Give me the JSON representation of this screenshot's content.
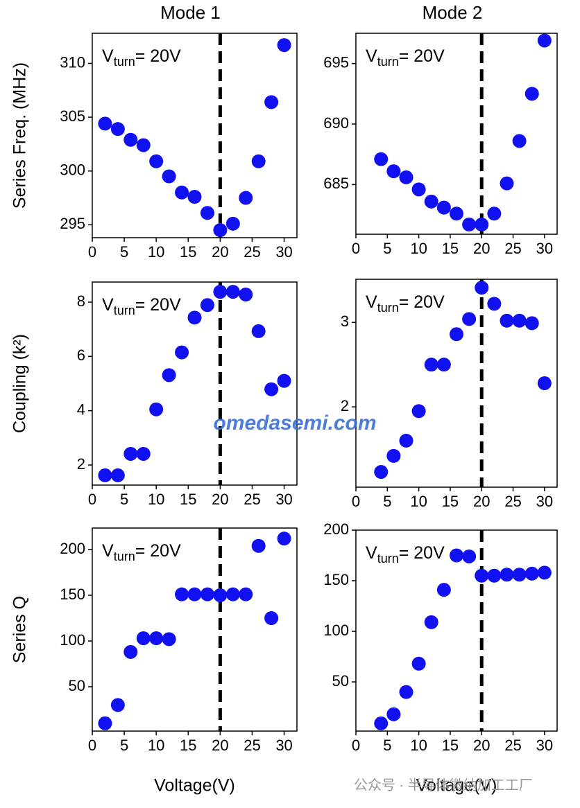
{
  "chart_data": [
    {
      "type": "scatter",
      "title": "Mode 1",
      "ylabel": "Series Freq. (MHz)",
      "color": "#1010f0",
      "annotation": {
        "main": "V",
        "sub": "turn",
        "rest": "= 20V"
      },
      "vline": 20,
      "x": [
        2,
        4,
        6,
        8,
        10,
        12,
        14,
        16,
        18,
        20,
        22,
        24,
        26,
        28,
        30
      ],
      "values": [
        304.4,
        303.9,
        302.9,
        302.4,
        300.9,
        299.5,
        298.0,
        297.6,
        296.1,
        294.5,
        295.1,
        297.5,
        300.9,
        306.4,
        311.7
      ],
      "xlim": [
        0,
        32
      ],
      "xticks": [
        0,
        5,
        10,
        15,
        20,
        25,
        30
      ],
      "ylim": [
        293.8,
        312.8
      ],
      "yticks": [
        295,
        300,
        305,
        310
      ]
    },
    {
      "type": "scatter",
      "title": "Mode 2",
      "color": "#1010f0",
      "annotation": {
        "main": "V",
        "sub": "turn",
        "rest": "= 20V"
      },
      "vline": 20,
      "x": [
        4,
        6,
        8,
        10,
        12,
        14,
        16,
        18,
        20,
        22,
        24,
        26,
        28,
        30
      ],
      "values": [
        687.1,
        686.1,
        685.6,
        684.6,
        683.6,
        683.1,
        682.6,
        681.7,
        681.7,
        682.6,
        685.1,
        688.6,
        692.5,
        696.9
      ],
      "xlim": [
        0,
        32
      ],
      "xticks": [
        0,
        5,
        10,
        15,
        20,
        25,
        30
      ],
      "ylim": [
        680.9,
        697.5
      ],
      "yticks": [
        685,
        690,
        695
      ]
    },
    {
      "type": "scatter",
      "ylabel": "Coupling (k²)",
      "color": "#1010f0",
      "annotation": {
        "main": "V",
        "sub": "turn",
        "rest": "= 20V"
      },
      "vline": 20,
      "x": [
        2,
        4,
        6,
        8,
        10,
        12,
        14,
        16,
        18,
        20,
        22,
        24,
        26,
        28,
        30
      ],
      "values": [
        1.62,
        1.62,
        2.41,
        2.41,
        4.05,
        5.31,
        6.15,
        7.43,
        7.89,
        8.38,
        8.38,
        8.28,
        6.93,
        4.79,
        5.1
      ],
      "xlim": [
        0,
        32
      ],
      "xticks": [
        0,
        5,
        10,
        15,
        20,
        25,
        30
      ],
      "ylim": [
        1.26,
        8.74
      ],
      "yticks": [
        2,
        4,
        6,
        8
      ]
    },
    {
      "type": "scatter",
      "color": "#1010f0",
      "annotation": {
        "main": "V",
        "sub": "turn",
        "rest": "= 20V"
      },
      "vline": 20,
      "x": [
        4,
        6,
        8,
        10,
        12,
        14,
        16,
        18,
        20,
        22,
        24,
        26,
        28,
        30
      ],
      "values": [
        1.23,
        1.42,
        1.6,
        1.95,
        2.5,
        2.5,
        2.86,
        3.04,
        3.41,
        3.22,
        3.02,
        3.02,
        2.99,
        2.28
      ],
      "xlim": [
        0,
        32
      ],
      "xticks": [
        0,
        5,
        10,
        15,
        20,
        25,
        30
      ],
      "ylim": [
        1.05,
        3.51
      ],
      "yticks": [
        2,
        3
      ]
    },
    {
      "type": "scatter",
      "ylabel": "Series Q",
      "xlabel": "Voltage(V)",
      "color": "#1010f0",
      "annotation": {
        "main": "V",
        "sub": "turn",
        "rest": "= 20V"
      },
      "vline": 20,
      "x": [
        2,
        4,
        6,
        8,
        10,
        12,
        14,
        16,
        18,
        20,
        22,
        24,
        26,
        28,
        30
      ],
      "values": [
        10,
        30,
        88,
        103,
        103,
        102,
        151,
        151,
        151,
        150,
        151,
        151,
        204,
        125,
        212
      ],
      "xlim": [
        0,
        32
      ],
      "xticks": [
        0,
        5,
        10,
        15,
        20,
        25,
        30
      ],
      "ylim": [
        1.5,
        223.5
      ],
      "yticks": [
        50,
        100,
        150,
        200
      ]
    },
    {
      "type": "scatter",
      "xlabel": "Voltage(V)",
      "color": "#1010f0",
      "annotation": {
        "main": "V",
        "sub": "turn",
        "rest": "= 20V"
      },
      "vline": 20,
      "x": [
        4,
        6,
        8,
        10,
        12,
        14,
        16,
        18,
        20,
        22,
        24,
        26,
        28,
        30
      ],
      "values": [
        9,
        18,
        40,
        68,
        109,
        141,
        175,
        174,
        155,
        155,
        156,
        156,
        157,
        158
      ],
      "xlim": [
        0,
        32
      ],
      "xticks": [
        0,
        5,
        10,
        15,
        20,
        25,
        30
      ],
      "ylim": [
        1.4,
        200
      ],
      "yticks": [
        50,
        100,
        150,
        200
      ]
    }
  ],
  "watermark": {
    "site": "omedasemi.com",
    "account": "公众号 · 半导体微纳加工工厂"
  }
}
